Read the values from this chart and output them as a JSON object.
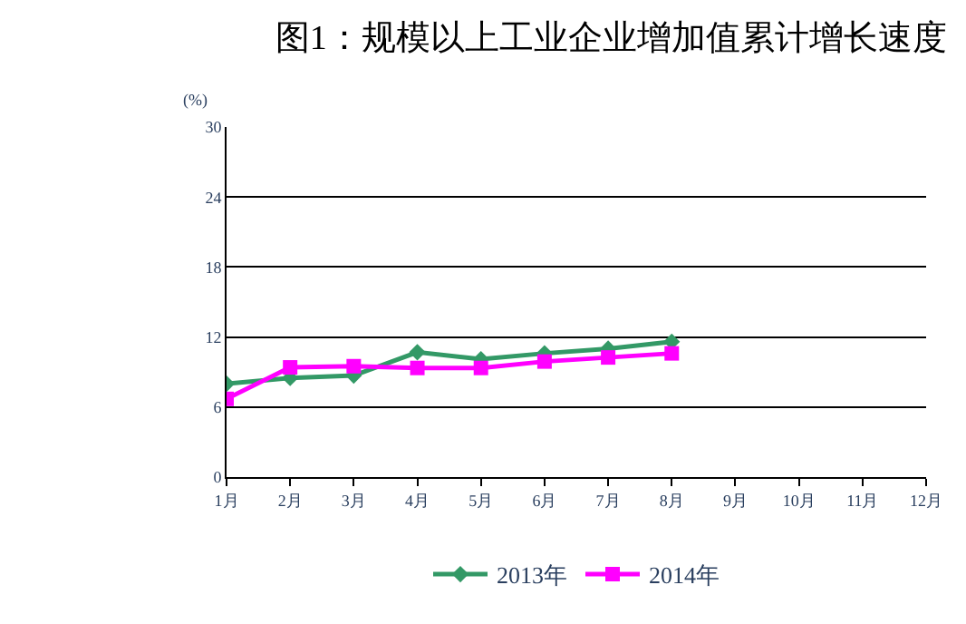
{
  "chart_data": {
    "type": "line",
    "title": "图1：规模以上工业企业增加值累计增长速度",
    "ylabel": "(%)",
    "categories": [
      "1月",
      "2月",
      "3月",
      "4月",
      "5月",
      "6月",
      "7月",
      "8月",
      "9月",
      "10月",
      "11月",
      "12月"
    ],
    "series": [
      {
        "name": "2013年",
        "color": "#339966",
        "marker": "diamond",
        "values": [
          8.0,
          8.5,
          8.7,
          10.7,
          10.1,
          10.6,
          11.0,
          11.6,
          null,
          null,
          null,
          null
        ]
      },
      {
        "name": "2014年",
        "color": "#ff00ff",
        "marker": "square",
        "values": [
          6.7,
          9.4,
          9.5,
          9.35,
          9.35,
          9.9,
          10.25,
          10.6,
          null,
          null,
          null,
          null
        ]
      }
    ],
    "ylim": [
      0,
      30
    ],
    "yticks": [
      0,
      6,
      12,
      18,
      24,
      30
    ],
    "grid": "y",
    "legend": "bottom",
    "line_style": "solid"
  }
}
